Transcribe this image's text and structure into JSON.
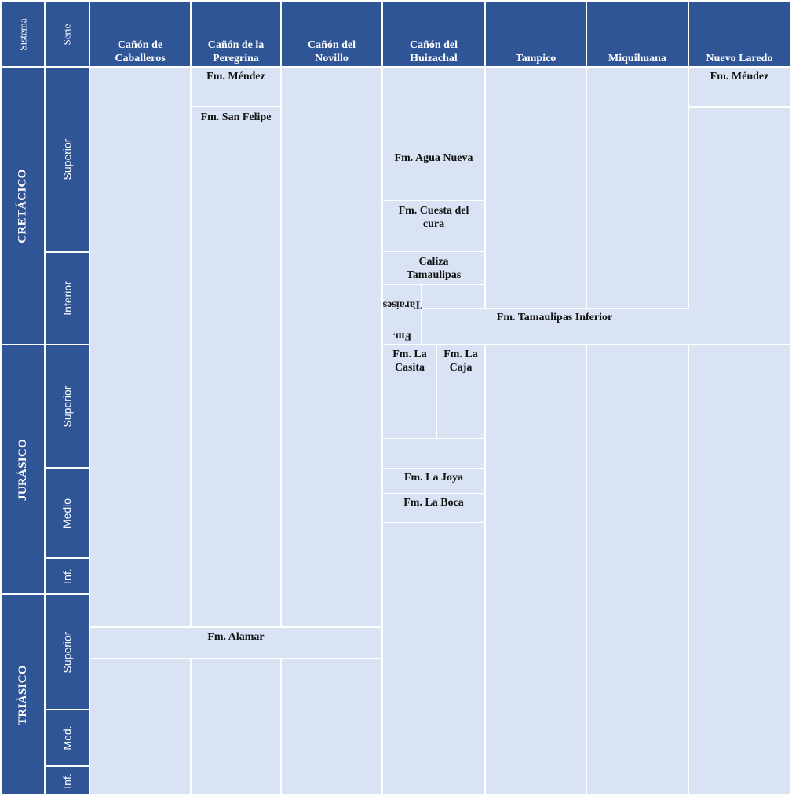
{
  "header": {
    "sistema": "Sistema",
    "serie": "Serie",
    "columns": [
      {
        "line1": "Cañón de",
        "line2": "Caballeros"
      },
      {
        "line1": "Cañón de la",
        "line2": "Peregrina"
      },
      {
        "line1": "Cañón del",
        "line2": "Novillo"
      },
      {
        "line1": "Cañón del",
        "line2": "Huizachal"
      },
      {
        "line1": "",
        "line2": "Tampico"
      },
      {
        "line1": "",
        "line2": "Miquihuana"
      },
      {
        "line1": "",
        "line2": "Nuevo Laredo"
      }
    ]
  },
  "systems": [
    "CRETÁCICO",
    "JURÁSICO",
    "TRIÁSICO"
  ],
  "series": [
    "Superior",
    "Inferior",
    "Superior",
    "Medio",
    "Inf.",
    "Superior",
    "Med.",
    "Inf."
  ],
  "formations": {
    "peregrina_mendez": "Fm. Méndez",
    "peregrina_san_felipe": "Fm. San Felipe",
    "huizachal_agua_nueva": "Fm. Agua Nueva",
    "huizachal_cuesta_del_cura_1": "Fm. Cuesta del",
    "huizachal_cuesta_del_cura_2": "cura",
    "huizachal_caliza_1": "Caliza",
    "huizachal_caliza_2": "Tamaulipas",
    "huizachal_taraises_1": "Fm.",
    "huizachal_taraises_2": "Taraises",
    "tamaulipas_inferior": "Fm. Tamaulipas Inferior",
    "huizachal_la_casita_1": "Fm. La",
    "huizachal_la_casita_2": "Casita",
    "huizachal_la_caja_1": "Fm. La",
    "huizachal_la_caja_2": "Caja",
    "huizachal_la_joya": "Fm. La Joya",
    "huizachal_la_boca": "Fm. La Boca",
    "alamar": "Fm. Alamar",
    "nuevo_laredo_mendez": "Fm. Méndez"
  }
}
